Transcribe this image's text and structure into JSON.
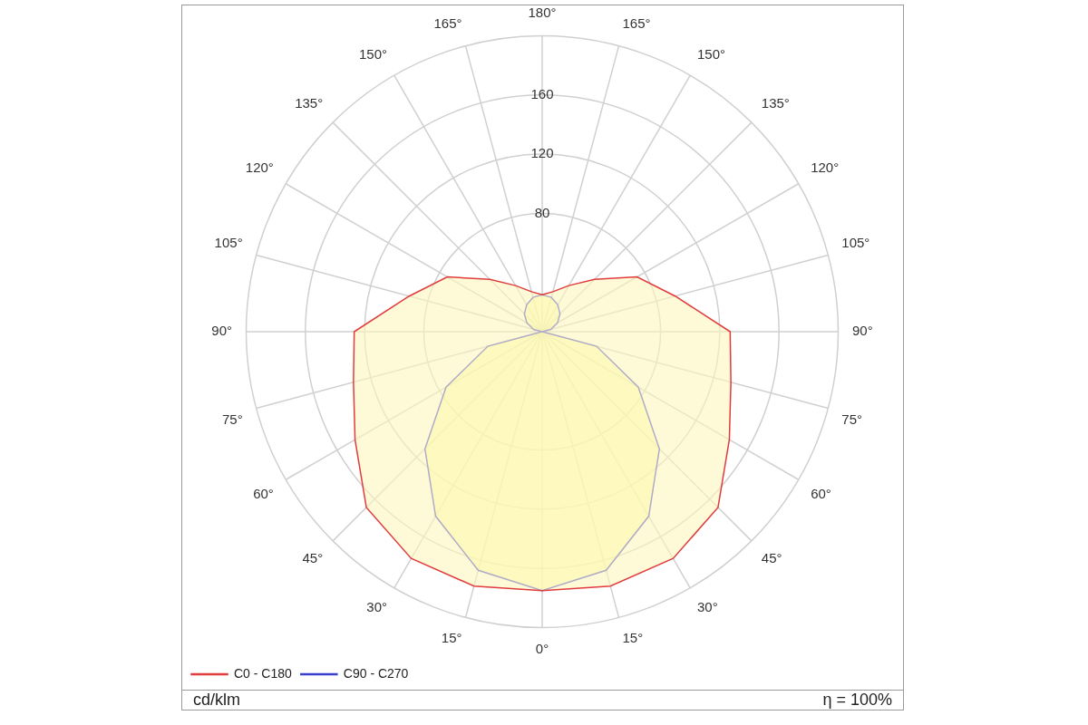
{
  "chart_data": {
    "type": "radar",
    "categories": [
      "180°",
      "165°",
      "150°",
      "135°",
      "120°",
      "105°",
      "90°",
      "75°",
      "60°",
      "45°",
      "30°",
      "15°",
      "0°",
      "15°",
      "30°",
      "45°",
      "60°",
      "75°",
      "90°",
      "105°",
      "120°",
      "135°",
      "150°",
      "165°"
    ],
    "series": [
      {
        "name": "C0 - C180",
        "color": "#e03c3c",
        "values": [
          25,
          28,
          36,
          50,
          74,
          93,
          127,
          132,
          146,
          168,
          177,
          178,
          175,
          178,
          177,
          168,
          146,
          132,
          127,
          93,
          74,
          50,
          36,
          28
        ]
      },
      {
        "name": "C90 - C270",
        "color": "#3c3cd0",
        "values": [
          25,
          24,
          21,
          17,
          12,
          6,
          0,
          38,
          75,
          112,
          144,
          167,
          175,
          167,
          144,
          112,
          75,
          38,
          0,
          6,
          12,
          17,
          21,
          24
        ]
      }
    ],
    "ylim": [
      0,
      200
    ],
    "yticks": [
      80,
      120,
      160
    ],
    "grid": true,
    "legend": "bottom left",
    "marker": "none",
    "line_style": "solid",
    "annotations": [
      "cd/klm",
      "η = 100%"
    ]
  }
}
